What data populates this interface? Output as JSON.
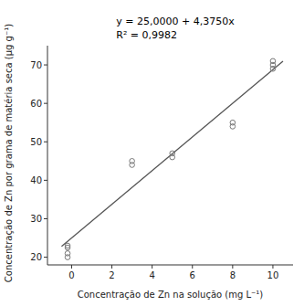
{
  "chart_data": {
    "type": "scatter",
    "xlabel": "Concentração de Zn na solução (mg L⁻¹)",
    "ylabel": "Concentração de Zn por grama de matéria seca (μg g⁻¹)",
    "annotations": [
      "y = 25,0000 + 4,3750x",
      "R² = 0,9982"
    ],
    "series": [
      {
        "type": "scatter",
        "x": [
          -0.2,
          -0.2,
          -0.2,
          -0.2,
          3.0,
          3.0,
          5.0,
          5.0,
          8.0,
          8.0,
          10.0,
          10.0,
          10.0
        ],
        "values": [
          23.0,
          22.5,
          21.0,
          20.0,
          45.0,
          44.0,
          47.0,
          46.0,
          55.0,
          54.0,
          71.0,
          70.0,
          69.0
        ],
        "color": "#777777",
        "marker": "open-circle"
      },
      {
        "type": "line",
        "x": [
          -0.5,
          10.5
        ],
        "values": [
          22.8125,
          70.9375
        ],
        "color": "#555555",
        "line_style": "solid"
      }
    ],
    "xlim": [
      -1.2,
      11.0
    ],
    "ylim": [
      18,
      75
    ],
    "xticks": [
      0,
      2,
      4,
      6,
      8,
      10
    ],
    "yticks": [
      20,
      30,
      40,
      50,
      60,
      70
    ],
    "grid": false
  }
}
